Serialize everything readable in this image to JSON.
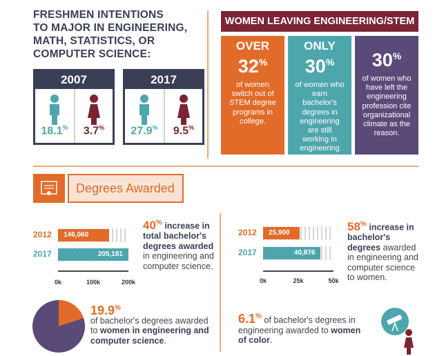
{
  "freshmen": {
    "title_lines": [
      "FRESHMEN INTENTIONS",
      "TO MAJOR IN ENGINEERING,",
      "MATH, STATISTICS, OR",
      "COMPUTER SCIENCE:"
    ],
    "years": [
      {
        "year": "2007",
        "male_pct": "18.1",
        "female_pct": "3.7"
      },
      {
        "year": "2017",
        "male_pct": "27.9",
        "female_pct": "9.5"
      }
    ],
    "pct_symbol": "%"
  },
  "women_leaving": {
    "header": "WOMEN LEAVING ENGINEERING/STEM",
    "cards": [
      {
        "lead": "OVER",
        "number": "32",
        "desc": "of women switch out of STEM degree programs in college.",
        "color": "#e26b2a"
      },
      {
        "lead": "ONLY",
        "number": "30",
        "desc": "of women who earn bachelor's degrees in engineering are still working in engineering 20 years later.",
        "color": "#4ea6ad"
      },
      {
        "lead": "",
        "number": "30",
        "desc": "of women who have left the engineering profession cite organizational climate as the reason.",
        "color": "#5a4a78"
      }
    ]
  },
  "degrees": {
    "title": "Degrees Awarded",
    "total_chart": {
      "rows": [
        {
          "year": "2012",
          "value_label": "146,060",
          "value": 146060
        },
        {
          "year": "2017",
          "value_label": "205,181",
          "value": 205181
        }
      ],
      "ticks": [
        "0k",
        "100k",
        "200k"
      ],
      "xlim": [
        0,
        200000
      ]
    },
    "women_chart": {
      "rows": [
        {
          "year": "2012",
          "value_label": "25,900",
          "value": 25900
        },
        {
          "year": "2017",
          "value_label": "40,876",
          "value": 40876
        }
      ],
      "ticks": [
        "0k",
        "25k",
        "50k"
      ],
      "xlim": [
        0,
        50000
      ]
    },
    "total_note": {
      "num": "40",
      "bold": "increase in total bachelor's degrees awarded",
      "rest": "in engineering and computer science."
    },
    "women_note": {
      "num": "58",
      "bold": "increase in bachelor's degrees",
      "rest": "awarded in engineering and computer science to women."
    },
    "pie_note": {
      "num": "19.9",
      "pre": "of bachelor's degrees awarded to",
      "bold": "women in engineering and computer science",
      "post": ".",
      "fraction": 0.199
    },
    "color_note": {
      "num": "6.1",
      "pre": "of bachelor's degrees in engineering awarded to",
      "bold": "women of color",
      "post": "."
    }
  },
  "colors": {
    "orange": "#e26b2a",
    "teal": "#4ea6ad",
    "maroon": "#7a2434",
    "navy": "#3a3f55",
    "purple": "#5a4a78"
  }
}
